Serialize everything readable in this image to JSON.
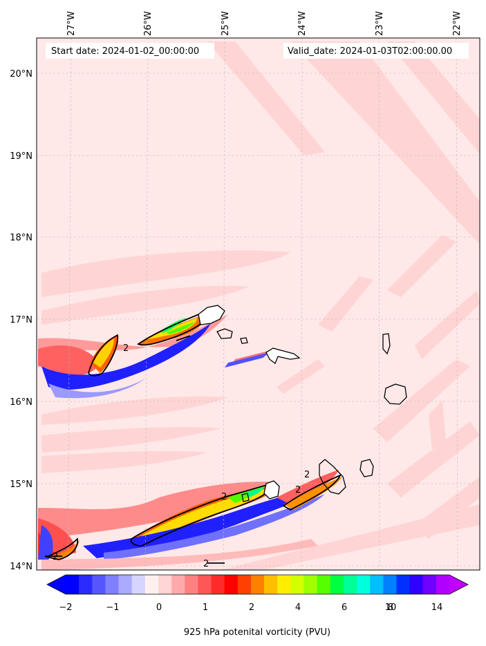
{
  "header": {
    "start_date": "Start date: 2024-01-02_00:00:00",
    "valid_date": "Valid_date: 2024-01-03T02:00:00.00"
  },
  "axes": {
    "lon_labels": [
      "27°W",
      "26°W",
      "25°W",
      "24°W",
      "23°W",
      "22°W"
    ],
    "lat_labels": [
      "20°N",
      "19°N",
      "18°N",
      "17°N",
      "16°N",
      "15°N",
      "14°N"
    ]
  },
  "contour_labels": [
    "2",
    "2",
    "2",
    "2",
    "2",
    "2"
  ],
  "colorbar": {
    "title": "925 hPa potenital vorticity (PVU)",
    "tick_labels": [
      "−2",
      "−1",
      "0",
      "1",
      "2",
      "4",
      "6",
      "8",
      "10",
      "14"
    ],
    "colors": [
      "#0000ff",
      "#2b2bff",
      "#5656ff",
      "#8080ff",
      "#aaaaff",
      "#d5d5ff",
      "#fff0f0",
      "#ffd5d5",
      "#ffaaaa",
      "#ff8080",
      "#ff5656",
      "#ff2b2b",
      "#ff0000",
      "#ff4000",
      "#ff8000",
      "#ffbf00",
      "#ffee00",
      "#d4ff00",
      "#a0ff00",
      "#55ff00",
      "#00ff40",
      "#00ff99",
      "#00ffdd",
      "#00bfff",
      "#0080ff",
      "#0030ff",
      "#3000ff",
      "#7000ff",
      "#b000ff"
    ],
    "under_color": "#0000ff",
    "over_color": "#c000ff"
  },
  "colors": {
    "background_field": "#ffe8e8",
    "light_pink": "#ffd0d0",
    "coastline": "#000000",
    "grid": "#bbbbbb"
  }
}
